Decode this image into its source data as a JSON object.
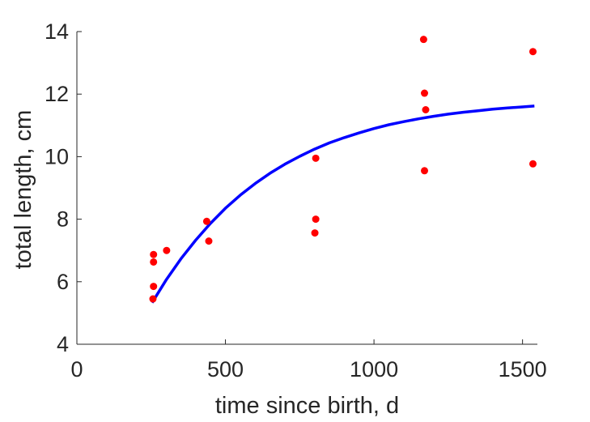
{
  "chart_data": {
    "type": "scatter",
    "title": "",
    "xlabel": "time since birth, d",
    "ylabel": "total length, cm",
    "xlim": [
      0,
      1550
    ],
    "ylim": [
      4,
      14
    ],
    "xticks": [
      0,
      500,
      1000,
      1500
    ],
    "yticks": [
      4,
      6,
      8,
      10,
      12,
      14
    ],
    "grid": false,
    "series": [
      {
        "kind": "scatter",
        "color": "#ff0000",
        "points": [
          [
            256,
            5.45
          ],
          [
            258,
            5.85
          ],
          [
            258,
            6.63
          ],
          [
            258,
            6.87
          ],
          [
            302,
            7.0
          ],
          [
            437,
            7.93
          ],
          [
            444,
            7.3
          ],
          [
            801,
            7.56
          ],
          [
            804,
            8.0
          ],
          [
            804,
            9.95
          ],
          [
            1167,
            13.75
          ],
          [
            1170,
            12.03
          ],
          [
            1174,
            11.5
          ],
          [
            1170,
            9.55
          ],
          [
            1535,
            13.36
          ],
          [
            1535,
            9.77
          ]
        ]
      },
      {
        "kind": "line",
        "color": "#0000ff",
        "x": [
          253,
          300,
          350,
          400,
          450,
          500,
          550,
          600,
          650,
          700,
          750,
          800,
          850,
          900,
          950,
          1000,
          1050,
          1100,
          1150,
          1200,
          1250,
          1300,
          1350,
          1400,
          1450,
          1500,
          1540
        ],
        "y": [
          5.33,
          6.05,
          6.73,
          7.33,
          7.87,
          8.35,
          8.77,
          9.14,
          9.47,
          9.76,
          10.01,
          10.24,
          10.44,
          10.61,
          10.76,
          10.9,
          11.02,
          11.12,
          11.21,
          11.29,
          11.36,
          11.42,
          11.47,
          11.52,
          11.56,
          11.59,
          11.62
        ]
      }
    ]
  }
}
